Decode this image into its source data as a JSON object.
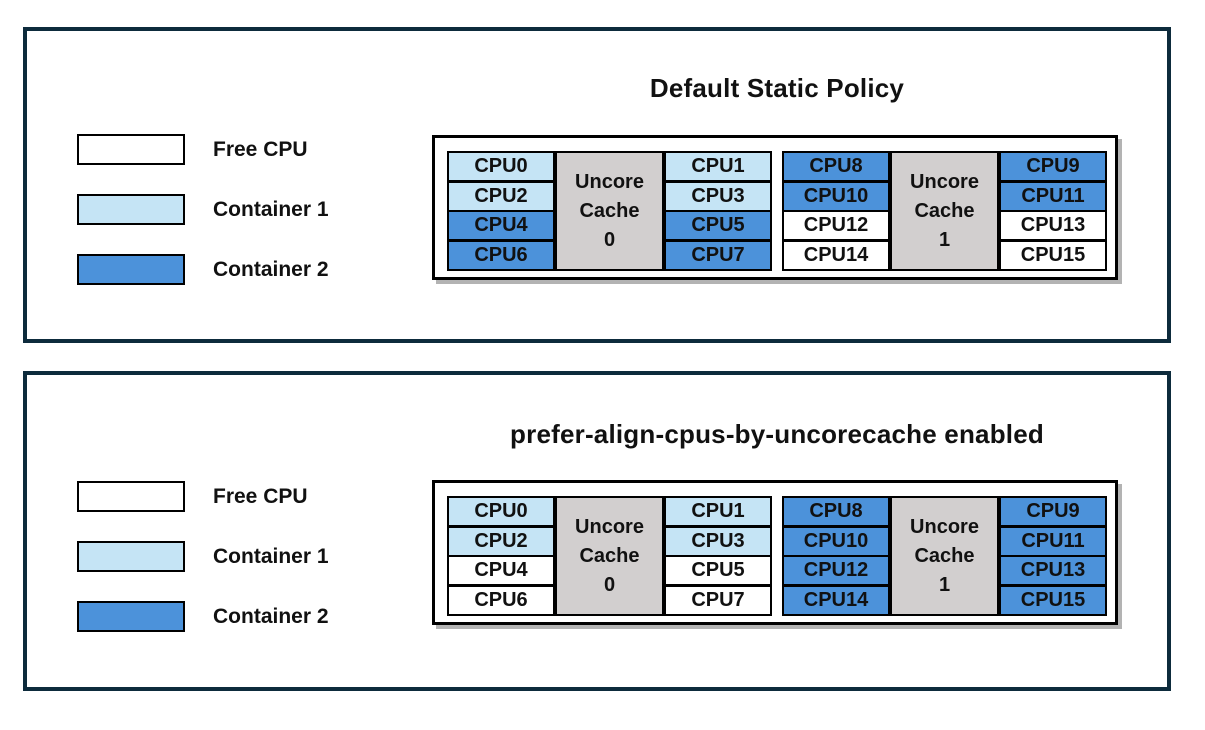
{
  "colors": {
    "free": "#FFFFFF",
    "container1": "#C5E4F5",
    "container2": "#4C92DA",
    "cache_gray": "#D2CFCF",
    "panel_border": "#0D2B3C",
    "cell_border": "#000000"
  },
  "legend": {
    "items": [
      {
        "label": "Free CPU",
        "color_key": "free"
      },
      {
        "label": "Container 1",
        "color_key": "container1"
      },
      {
        "label": "Container 2",
        "color_key": "container2"
      }
    ]
  },
  "panels": [
    {
      "title": "Default Static Policy",
      "groups": [
        {
          "cache_lines": [
            "Uncore",
            "Cache",
            "0"
          ],
          "left_cpus": [
            {
              "label": "CPU0",
              "state": "container1"
            },
            {
              "label": "CPU2",
              "state": "container1"
            },
            {
              "label": "CPU4",
              "state": "container2"
            },
            {
              "label": "CPU6",
              "state": "container2"
            }
          ],
          "right_cpus": [
            {
              "label": "CPU1",
              "state": "container1"
            },
            {
              "label": "CPU3",
              "state": "container1"
            },
            {
              "label": "CPU5",
              "state": "container2"
            },
            {
              "label": "CPU7",
              "state": "container2"
            }
          ]
        },
        {
          "cache_lines": [
            "Uncore",
            "Cache",
            "1"
          ],
          "left_cpus": [
            {
              "label": "CPU8",
              "state": "container2"
            },
            {
              "label": "CPU10",
              "state": "container2"
            },
            {
              "label": "CPU12",
              "state": "free"
            },
            {
              "label": "CPU14",
              "state": "free"
            }
          ],
          "right_cpus": [
            {
              "label": "CPU9",
              "state": "container2"
            },
            {
              "label": "CPU11",
              "state": "container2"
            },
            {
              "label": "CPU13",
              "state": "free"
            },
            {
              "label": "CPU15",
              "state": "free"
            }
          ]
        }
      ]
    },
    {
      "title": "prefer-align-cpus-by-uncorecache enabled",
      "groups": [
        {
          "cache_lines": [
            "Uncore",
            "Cache",
            "0"
          ],
          "left_cpus": [
            {
              "label": "CPU0",
              "state": "container1"
            },
            {
              "label": "CPU2",
              "state": "container1"
            },
            {
              "label": "CPU4",
              "state": "free"
            },
            {
              "label": "CPU6",
              "state": "free"
            }
          ],
          "right_cpus": [
            {
              "label": "CPU1",
              "state": "container1"
            },
            {
              "label": "CPU3",
              "state": "container1"
            },
            {
              "label": "CPU5",
              "state": "free"
            },
            {
              "label": "CPU7",
              "state": "free"
            }
          ]
        },
        {
          "cache_lines": [
            "Uncore",
            "Cache",
            "1"
          ],
          "left_cpus": [
            {
              "label": "CPU8",
              "state": "container2"
            },
            {
              "label": "CPU10",
              "state": "container2"
            },
            {
              "label": "CPU12",
              "state": "container2"
            },
            {
              "label": "CPU14",
              "state": "container2"
            }
          ],
          "right_cpus": [
            {
              "label": "CPU9",
              "state": "container2"
            },
            {
              "label": "CPU11",
              "state": "container2"
            },
            {
              "label": "CPU13",
              "state": "container2"
            },
            {
              "label": "CPU15",
              "state": "container2"
            }
          ]
        }
      ]
    }
  ]
}
